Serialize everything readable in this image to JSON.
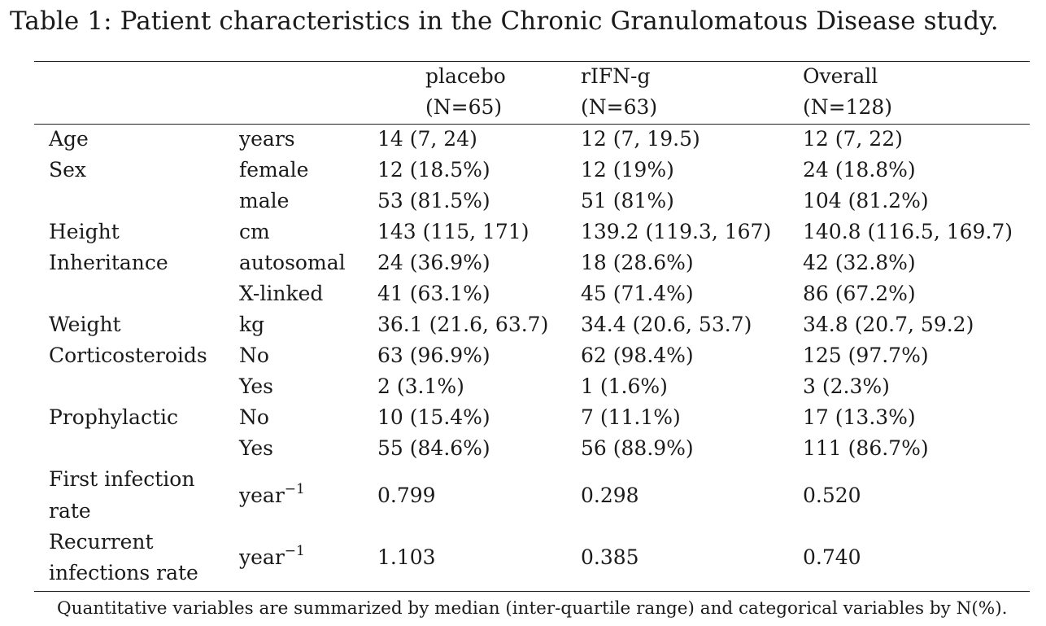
{
  "caption": "Table 1: Patient characteristics in the Chronic Granulomatous Disease study.",
  "columns": [
    {
      "name": "placebo",
      "n": "(N=65)"
    },
    {
      "name": "rIFN-g",
      "n": "(N=63)"
    },
    {
      "name": "Overall",
      "n": "(N=128)"
    }
  ],
  "rows": [
    {
      "variable": "Age",
      "level": "years",
      "placebo": "14 (7, 24)",
      "rifng": "12 (7, 19.5)",
      "overall": "12 (7, 22)"
    },
    {
      "variable": "Sex",
      "level": "female",
      "placebo": "12 (18.5%)",
      "rifng": "12 (19%)",
      "overall": "24 (18.8%)"
    },
    {
      "variable": "",
      "level": "male",
      "placebo": "53 (81.5%)",
      "rifng": "51 (81%)",
      "overall": "104 (81.2%)"
    },
    {
      "variable": "Height",
      "level": "cm",
      "placebo": "143 (115, 171)",
      "rifng": "139.2 (119.3, 167)",
      "overall": "140.8 (116.5, 169.7)"
    },
    {
      "variable": "Inheritance",
      "level": "autosomal",
      "placebo": "24 (36.9%)",
      "rifng": "18 (28.6%)",
      "overall": "42 (32.8%)"
    },
    {
      "variable": "",
      "level": "X-linked",
      "placebo": "41 (63.1%)",
      "rifng": "45 (71.4%)",
      "overall": "86 (67.2%)"
    },
    {
      "variable": "Weight",
      "level": "kg",
      "placebo": "36.1 (21.6, 63.7)",
      "rifng": "34.4 (20.6, 53.7)",
      "overall": "34.8 (20.7, 59.2)"
    },
    {
      "variable": "Corticosteroids",
      "level": "No",
      "placebo": "63 (96.9%)",
      "rifng": "62 (98.4%)",
      "overall": "125 (97.7%)"
    },
    {
      "variable": "",
      "level": "Yes",
      "placebo": "2 (3.1%)",
      "rifng": "1 (1.6%)",
      "overall": "3 (2.3%)"
    },
    {
      "variable": "Prophylactic",
      "level": "No",
      "placebo": "10 (15.4%)",
      "rifng": "7 (11.1%)",
      "overall": "17 (13.3%)"
    },
    {
      "variable": "",
      "level": "Yes",
      "placebo": "55 (84.6%)",
      "rifng": "56 (88.9%)",
      "overall": "111 (86.7%)"
    }
  ],
  "rate_rows": [
    {
      "variable_line1": "First infection",
      "variable_line2": "rate",
      "unit": "year",
      "unit_exp": "−1",
      "placebo": "0.799",
      "rifng": "0.298",
      "overall": "0.520"
    },
    {
      "variable_line1": "Recurrent",
      "variable_line2": "infections rate",
      "unit": "year",
      "unit_exp": "−1",
      "placebo": "1.103",
      "rifng": "0.385",
      "overall": "0.740"
    }
  ],
  "footnote": "Quantitative variables are summarized by median (inter-quartile range) and categorical variables by N(%)."
}
